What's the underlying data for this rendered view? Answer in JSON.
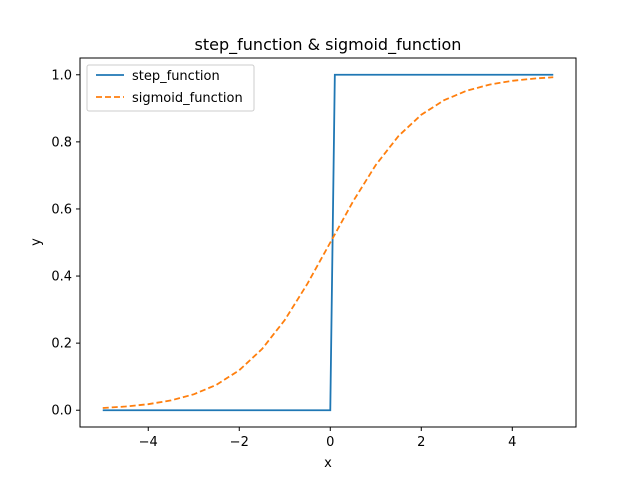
{
  "chart_data": {
    "type": "line",
    "title": "step_function & sigmoid_function",
    "xlabel": "x",
    "ylabel": "y",
    "xlim": [
      -5.5,
      5.4
    ],
    "ylim": [
      -0.05,
      1.05
    ],
    "xticks": [
      -4,
      -2,
      0,
      2,
      4
    ],
    "xtick_labels": [
      "−4",
      "−2",
      "0",
      "2",
      "4"
    ],
    "yticks": [
      0.0,
      0.2,
      0.4,
      0.6,
      0.8,
      1.0
    ],
    "ytick_labels": [
      "0.0",
      "0.2",
      "0.4",
      "0.6",
      "0.8",
      "1.0"
    ],
    "grid": false,
    "legend_position": "top-left",
    "series": [
      {
        "name": "step_function",
        "style": "solid",
        "color": "#1f77b4",
        "x": [
          -5.0,
          0.0,
          0.1,
          4.9
        ],
        "y": [
          0.0,
          0.0,
          1.0,
          1.0
        ]
      },
      {
        "name": "sigmoid_function",
        "style": "dashed",
        "color": "#ff7f0e",
        "x": [
          -5.0,
          -4.5,
          -4.0,
          -3.5,
          -3.0,
          -2.5,
          -2.0,
          -1.5,
          -1.0,
          -0.5,
          0.0,
          0.5,
          1.0,
          1.5,
          2.0,
          2.5,
          3.0,
          3.5,
          4.0,
          4.5,
          4.9
        ],
        "y": [
          0.0067,
          0.011,
          0.018,
          0.0293,
          0.0474,
          0.0759,
          0.1192,
          0.1824,
          0.2689,
          0.3775,
          0.5,
          0.6225,
          0.7311,
          0.8176,
          0.8808,
          0.9241,
          0.9526,
          0.9707,
          0.982,
          0.989,
          0.9926
        ]
      }
    ]
  }
}
